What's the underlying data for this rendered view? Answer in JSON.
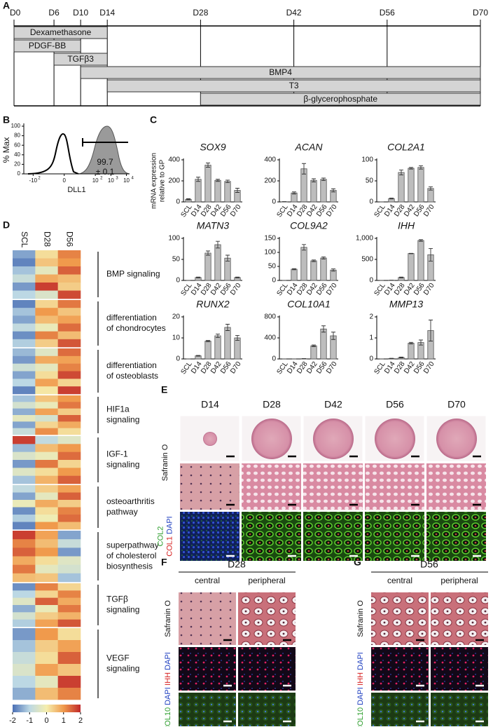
{
  "panel_labels": [
    "A",
    "B",
    "C",
    "D",
    "E",
    "F",
    "G"
  ],
  "timeline": {
    "ticks": [
      {
        "value": 0,
        "label": "D0"
      },
      {
        "value": 6,
        "label": "D6"
      },
      {
        "value": 10,
        "label": "D10"
      },
      {
        "value": 14,
        "label": "D14"
      },
      {
        "value": 28,
        "label": "D28"
      },
      {
        "value": 42,
        "label": "D42"
      },
      {
        "value": 56,
        "label": "D56"
      },
      {
        "value": 70,
        "label": "D70"
      }
    ],
    "xlim": [
      0,
      70
    ],
    "treatments": [
      {
        "name": "Dexamethasone",
        "start": 0,
        "end": 14
      },
      {
        "name": "PDGF-BB",
        "start": 0,
        "end": 10
      },
      {
        "name": "TGFβ3",
        "start": 6,
        "end": 14
      },
      {
        "name": "BMP4",
        "start": 10,
        "end": 70
      },
      {
        "name": "T3",
        "start": 14,
        "end": 70
      },
      {
        "name": "β-glycerophosphate",
        "start": 28,
        "end": 70
      }
    ]
  },
  "flow": {
    "ylabel": "% Max",
    "ylim": [
      0,
      100
    ],
    "yticks": [
      0,
      20,
      40,
      60,
      80,
      100
    ],
    "xlim": [
      -2.6,
      4.2
    ],
    "xticks": [
      {
        "value": -2,
        "label": "-10",
        "sup": "2"
      },
      {
        "value": 0,
        "label": "0"
      },
      {
        "value": 2,
        "label": "10",
        "sup": "2"
      },
      {
        "value": 3,
        "label": "10",
        "sup": "3"
      },
      {
        "value": 4,
        "label": "10",
        "sup": "4"
      }
    ],
    "xlabel": "DLL1",
    "gate_value": "99.7",
    "gate_error": "± 0.1"
  },
  "chart_data": [
    {
      "type": "bar",
      "title": "SOX9",
      "ylabel": [
        "mRNA expression",
        "relative to GP"
      ],
      "categories": [
        "SCL",
        "D14",
        "D28",
        "D42",
        "D56",
        "D70"
      ],
      "values": [
        25,
        215,
        350,
        205,
        195,
        110
      ],
      "errors": [
        5,
        20,
        20,
        10,
        12,
        20
      ],
      "ylim": [
        0,
        400
      ],
      "yticks": [
        0,
        200,
        400
      ],
      "color": "#bdbdbd"
    },
    {
      "type": "bar",
      "title": "ACAN",
      "categories": [
        "SCL",
        "D14",
        "D28",
        "D42",
        "D56",
        "D70"
      ],
      "values": [
        2,
        85,
        315,
        205,
        215,
        110
      ],
      "errors": [
        1,
        10,
        50,
        15,
        12,
        15
      ],
      "ylim": [
        0,
        400
      ],
      "yticks": [
        0,
        200,
        400
      ],
      "color": "#bdbdbd"
    },
    {
      "type": "bar",
      "title": "COL2A1",
      "categories": [
        "SCL",
        "D14",
        "D28",
        "D42",
        "D56",
        "D70"
      ],
      "values": [
        0,
        8,
        70,
        80,
        82,
        32
      ],
      "errors": [
        0,
        1,
        6,
        2,
        4,
        4
      ],
      "ylim": [
        0,
        100
      ],
      "yticks": [
        0,
        50,
        100
      ],
      "color": "#bdbdbd"
    },
    {
      "type": "bar",
      "title": "MATN3",
      "categories": [
        "SCL",
        "D14",
        "D28",
        "D42",
        "D56",
        "D70"
      ],
      "values": [
        0,
        7,
        65,
        85,
        53,
        7
      ],
      "errors": [
        0,
        1,
        5,
        8,
        7,
        1
      ],
      "ylim": [
        0,
        100
      ],
      "yticks": [
        0,
        50,
        100
      ],
      "color": "#bdbdbd"
    },
    {
      "type": "bar",
      "title": "COL9A2",
      "categories": [
        "SCL",
        "D14",
        "D28",
        "D42",
        "D56",
        "D70"
      ],
      "values": [
        0,
        40,
        118,
        70,
        80,
        37
      ],
      "errors": [
        0,
        2,
        10,
        3,
        4,
        4
      ],
      "ylim": [
        0,
        150
      ],
      "yticks": [
        0,
        50,
        100,
        150
      ],
      "color": "#bdbdbd"
    },
    {
      "type": "bar",
      "title": "IHH",
      "categories": [
        "SCL",
        "D14",
        "D28",
        "D42",
        "D56",
        "D70"
      ],
      "values": [
        0,
        5,
        70,
        640,
        950,
        610
      ],
      "errors": [
        0,
        1,
        10,
        5,
        20,
        150
      ],
      "ylim": [
        0,
        1000
      ],
      "yticks": [
        0,
        500,
        {
          "value": 1000,
          "label": "1,000"
        }
      ],
      "color": "#bdbdbd"
    },
    {
      "type": "bar",
      "title": "RUNX2",
      "categories": [
        "SCL",
        "D14",
        "D28",
        "D42",
        "D56",
        "D70"
      ],
      "values": [
        0,
        1.5,
        8.5,
        11,
        15,
        10
      ],
      "errors": [
        0,
        0.2,
        0.3,
        0.8,
        1.5,
        1.2
      ],
      "ylim": [
        0,
        20
      ],
      "yticks": [
        0,
        10,
        20
      ],
      "color": "#bdbdbd"
    },
    {
      "type": "bar",
      "title": "COL10A1",
      "categories": [
        "SCL",
        "D14",
        "D28",
        "D42",
        "D56",
        "D70"
      ],
      "values": [
        0,
        0,
        5,
        250,
        570,
        440
      ],
      "errors": [
        0,
        0,
        2,
        15,
        60,
        70
      ],
      "ylim": [
        0,
        800
      ],
      "yticks": [
        0,
        400,
        800
      ],
      "color": "#bdbdbd"
    },
    {
      "type": "bar",
      "title": "MMP13",
      "categories": [
        "SCL",
        "D14",
        "D28",
        "D42",
        "D56",
        "D70"
      ],
      "values": [
        0,
        0.02,
        0.07,
        0.75,
        0.78,
        1.35
      ],
      "errors": [
        0,
        0.01,
        0.02,
        0.04,
        0.12,
        0.5
      ],
      "ylim": [
        0,
        2
      ],
      "yticks": [
        0,
        1,
        2
      ],
      "color": "#bdbdbd"
    }
  ],
  "heatmap": {
    "columns": [
      "SCL",
      "D28",
      "D56"
    ],
    "colorbar": {
      "lim": [
        -2,
        2
      ],
      "ticks": [
        -2,
        -1,
        0,
        1,
        2
      ]
    },
    "pathways": [
      {
        "name": [
          "BMP signaling"
        ],
        "rows": [
          [
            -1.5,
            0.2,
            1.2
          ],
          [
            -1.8,
            0.5,
            1.0
          ],
          [
            -1.2,
            -0.3,
            1.5
          ],
          [
            -0.8,
            0.8,
            0.6
          ],
          [
            -1.6,
            1.8,
            0.4
          ],
          [
            -1.0,
            -0.5,
            1.7
          ]
        ]
      },
      {
        "name": [
          "differentiation",
          "of chondrocytes"
        ],
        "rows": [
          [
            -1.8,
            0.3,
            1.3
          ],
          [
            -1.2,
            1.0,
            0.5
          ],
          [
            -1.5,
            0.6,
            0.9
          ],
          [
            -0.9,
            -0.2,
            1.4
          ],
          [
            -1.7,
            1.2,
            0.6
          ],
          [
            -1.1,
            0.4,
            1.6
          ]
        ]
      },
      {
        "name": [
          "differentiation",
          "of osteoblasts"
        ],
        "rows": [
          [
            -1.3,
            -0.4,
            1.4
          ],
          [
            -1.6,
            0.8,
            0.9
          ],
          [
            -0.7,
            -0.3,
            1.2
          ],
          [
            -1.5,
            0.2,
            1.7
          ],
          [
            -1.0,
            0.9,
            0.3
          ],
          [
            -1.8,
            0.1,
            1.8
          ]
        ]
      },
      {
        "name": [
          "HIF1a",
          "signaling"
        ],
        "rows": [
          [
            -1.2,
            0.5,
            1.0
          ],
          [
            -0.6,
            -0.2,
            1.3
          ],
          [
            -1.4,
            0.9,
            0.4
          ],
          [
            -0.3,
            -0.6,
            1.5
          ],
          [
            -1.5,
            0.3,
            0.8
          ],
          [
            -0.8,
            1.1,
            0.2
          ]
        ]
      },
      {
        "name": [
          "IGF-1",
          "signaling"
        ],
        "rows": [
          [
            1.8,
            -0.9,
            -0.4
          ],
          [
            -1.3,
            0.6,
            1.0
          ],
          [
            -0.5,
            -0.2,
            1.4
          ],
          [
            -1.6,
            1.3,
            0.3
          ],
          [
            -0.4,
            0.2,
            1.0
          ],
          [
            -1.2,
            0.7,
            1.5
          ]
        ]
      },
      {
        "name": [
          "osteoarthritis",
          "pathway"
        ],
        "rows": [
          [
            -0.9,
            0.4,
            0.9
          ],
          [
            -1.5,
            -0.3,
            1.5
          ],
          [
            -0.2,
            0.8,
            0.4
          ],
          [
            -1.7,
            0.2,
            1.2
          ],
          [
            -1.1,
            -0.1,
            1.4
          ],
          [
            -1.8,
            1.0,
            0.6
          ]
        ]
      },
      {
        "name": [
          "superpathway",
          "of cholesterol",
          "biosynthesis"
        ],
        "rows": [
          [
            1.8,
            0.9,
            -1.5
          ],
          [
            1.2,
            0.6,
            -0.8
          ],
          [
            1.5,
            1.0,
            -1.6
          ],
          [
            0.8,
            0.2,
            -0.4
          ],
          [
            1.3,
            -0.3,
            -0.6
          ],
          [
            0.6,
            0.5,
            -1.2
          ]
        ]
      },
      {
        "name": [
          "TGFβ",
          "signaling"
        ],
        "rows": [
          [
            -1.7,
            1.2,
            0.3
          ],
          [
            -1.0,
            0.3,
            1.2
          ],
          [
            -0.4,
            1.5,
            0.8
          ],
          [
            -1.4,
            -0.2,
            1.3
          ],
          [
            -0.6,
            0.4,
            0.7
          ],
          [
            -1.1,
            0.9,
            1.6
          ]
        ]
      },
      {
        "name": [
          "VEGF",
          "signaling"
        ],
        "rows": [
          [
            -1.6,
            1.0,
            0.2
          ],
          [
            -1.2,
            0.4,
            0.9
          ],
          [
            -0.8,
            0.2,
            1.5
          ],
          [
            -0.5,
            0.9,
            0.5
          ],
          [
            -1.0,
            -0.3,
            1.8
          ],
          [
            -1.4,
            0.6,
            1.2
          ]
        ]
      }
    ]
  },
  "panel_e": {
    "columns": [
      "D14",
      "D28",
      "D42",
      "D56",
      "D70"
    ],
    "row_labels": [
      [
        [
          {
            "text": "Safranin O",
            "color": "#111111"
          }
        ]
      ],
      [
        [
          {
            "text": "COL2",
            "color": "#2e9e2e"
          }
        ],
        [
          {
            "text": "COL1",
            "color": "#d62020"
          },
          {
            "text": "DAPI",
            "color": "#2040c0"
          }
        ]
      ]
    ]
  },
  "panel_f": {
    "title": "D28",
    "columns": [
      "central",
      "peripheral"
    ],
    "row_labels": [
      [
        [
          {
            "text": "Safranin O",
            "color": "#111111"
          }
        ]
      ],
      [
        [
          {
            "text": "IHH",
            "color": "#d62020"
          },
          {
            "text": "DAPI",
            "color": "#2040c0"
          }
        ]
      ],
      [
        [
          {
            "text": "COL10",
            "color": "#2e9e2e"
          },
          {
            "text": "DAPI",
            "color": "#2040c0"
          }
        ]
      ]
    ]
  },
  "panel_g": {
    "title": "D56",
    "columns": [
      "central",
      "peripheral"
    ],
    "row_labels": [
      [
        [
          {
            "text": "Safranin O",
            "color": "#111111"
          }
        ]
      ],
      [
        [
          {
            "text": "IHH",
            "color": "#d62020"
          },
          {
            "text": "DAPI",
            "color": "#2040c0"
          }
        ]
      ],
      [
        [
          {
            "text": "COL10",
            "color": "#2e9e2e"
          },
          {
            "text": "DAPI",
            "color": "#2040c0"
          }
        ]
      ]
    ]
  }
}
